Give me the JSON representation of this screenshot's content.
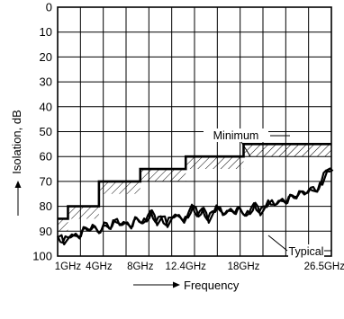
{
  "chart_data": {
    "type": "line",
    "xlabel": "Frequency",
    "ylabel": "Isolation, dB",
    "ylim": [
      0,
      100
    ],
    "y_inverted": true,
    "yticks": [
      0,
      10,
      20,
      30,
      40,
      50,
      60,
      70,
      80,
      90,
      100
    ],
    "xlim": [
      0,
      26.5
    ],
    "xticks": [
      {
        "value": 1,
        "label": "1GHz"
      },
      {
        "value": 4,
        "label": "4GHz"
      },
      {
        "value": 8,
        "label": "8GHz"
      },
      {
        "value": 12.4,
        "label": "12.4GHz"
      },
      {
        "value": 18,
        "label": "18GHz"
      },
      {
        "value": 26.5,
        "label": "26.5GHz"
      }
    ],
    "grid": true,
    "series": [
      {
        "name": "Minimum",
        "style": "step",
        "x": [
          0,
          1,
          1,
          4,
          4,
          8,
          8,
          12.4,
          12.4,
          18,
          18,
          26.5
        ],
        "y": [
          85,
          85,
          80,
          80,
          70,
          70,
          65,
          65,
          60,
          60,
          55,
          55
        ]
      },
      {
        "name": "Typical",
        "style": "noisy",
        "x": [
          0,
          0.5,
          1,
          1.5,
          2,
          2.5,
          3,
          3.5,
          4,
          4.5,
          5,
          5.5,
          6,
          6.5,
          7,
          7.5,
          8,
          8.5,
          9,
          9.5,
          10,
          10.5,
          11,
          11.5,
          12,
          12.5,
          13,
          13.5,
          14,
          14.5,
          15,
          15.5,
          16,
          16.5,
          17,
          17.5,
          18,
          18.5,
          19,
          19.5,
          20,
          20.5,
          21,
          21.5,
          22,
          22.5,
          23,
          23.5,
          24,
          24.5,
          25,
          25.5,
          26,
          26.5
        ],
        "y": [
          92,
          94,
          93,
          91,
          93,
          88,
          90,
          87,
          91,
          86,
          89,
          85,
          88,
          86,
          89,
          84,
          87,
          85,
          82,
          86,
          84,
          87,
          85,
          83,
          86,
          84,
          80,
          83,
          81,
          85,
          82,
          80,
          84,
          81,
          83,
          80,
          84,
          82,
          79,
          82,
          80,
          78,
          80,
          77,
          79,
          75,
          77,
          73,
          75,
          72,
          74,
          70,
          66,
          65
        ]
      }
    ],
    "annotations": [
      {
        "text": "Minimum",
        "x": 18.5,
        "y": 50
      },
      {
        "text": "Typical",
        "x": 23.5,
        "y": 90
      }
    ]
  }
}
